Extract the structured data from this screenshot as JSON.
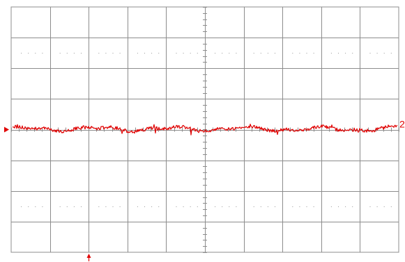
{
  "screen": {
    "grid_divisions": {
      "horizontal": 10,
      "vertical": 8
    }
  },
  "channel": {
    "label": "2",
    "color": "#e00000"
  },
  "colors": {
    "background": "#ffffff",
    "grid": "#8c8c8c",
    "dots": "#9a9a9a",
    "trace": "#e00000"
  },
  "icons": {
    "ground_marker": "triangle-right-marker",
    "trigger_marker": "up-arrow-marker"
  }
}
